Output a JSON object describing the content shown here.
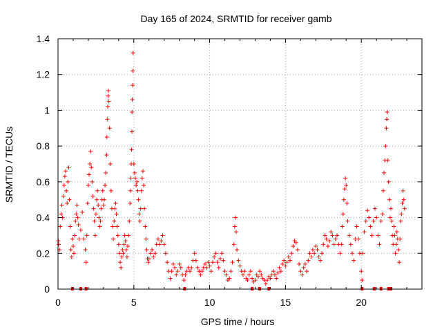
{
  "chart_data": {
    "type": "scatter",
    "title": "Day 165 of 2024, SRMTID for receiver gamb",
    "xlabel": "GPS time / hours",
    "ylabel": "SRMTID / TECUs",
    "xlim": [
      0,
      24
    ],
    "ylim": [
      0,
      1.4
    ],
    "xticks": [
      0,
      5,
      10,
      15,
      20
    ],
    "xtick_labels": [
      "0",
      "5",
      "10",
      "15",
      "20"
    ],
    "yticks": [
      0,
      0.2,
      0.4,
      0.6,
      0.8,
      1.0,
      1.2,
      1.4
    ],
    "ytick_labels": [
      "0",
      "0.2",
      "0.4",
      "0.6",
      "0.8",
      "1",
      "1.2",
      "1.4"
    ],
    "grid": true,
    "marker": "+",
    "marker_color": "#ff0000",
    "series": [
      {
        "name": "SRMTID",
        "points": [
          [
            0.02,
            0.27
          ],
          [
            0.05,
            0.25
          ],
          [
            0.1,
            0.22
          ],
          [
            0.15,
            0.35
          ],
          [
            0.2,
            0.42
          ],
          [
            0.25,
            0.47
          ],
          [
            0.3,
            0.4
          ],
          [
            0.35,
            0.52
          ],
          [
            0.4,
            0.58
          ],
          [
            0.45,
            0.63
          ],
          [
            0.5,
            0.66
          ],
          [
            0.55,
            0.55
          ],
          [
            0.6,
            0.48
          ],
          [
            0.65,
            0.6
          ],
          [
            0.7,
            0.68
          ],
          [
            0.75,
            0.5
          ],
          [
            0.8,
            0.35
          ],
          [
            0.85,
            0.22
          ],
          [
            0.9,
            0.18
          ],
          [
            0.95,
            0.28
          ],
          [
            1.0,
            0.24
          ],
          [
            1.05,
            0.2
          ],
          [
            1.1,
            0.3
          ],
          [
            1.15,
            0.38
          ],
          [
            1.2,
            0.42
          ],
          [
            1.25,
            0.47
          ],
          [
            1.3,
            0.4
          ],
          [
            1.35,
            0.36
          ],
          [
            1.4,
            0.28
          ],
          [
            1.5,
            0.33
          ],
          [
            1.6,
            0.43
          ],
          [
            1.7,
            0.28
          ],
          [
            1.8,
            0.22
          ],
          [
            1.85,
            0.15
          ],
          [
            1.9,
            0.3
          ],
          [
            1.95,
            0.48
          ],
          [
            2.0,
            0.58
          ],
          [
            2.05,
            0.64
          ],
          [
            2.1,
            0.7
          ],
          [
            2.15,
            0.77
          ],
          [
            2.2,
            0.68
          ],
          [
            2.25,
            0.6
          ],
          [
            2.3,
            0.52
          ],
          [
            2.35,
            0.45
          ],
          [
            2.4,
            0.38
          ],
          [
            2.45,
            0.3
          ],
          [
            2.5,
            0.42
          ],
          [
            2.55,
            0.5
          ],
          [
            2.6,
            0.55
          ],
          [
            2.65,
            0.47
          ],
          [
            2.7,
            0.4
          ],
          [
            2.75,
            0.35
          ],
          [
            2.8,
            0.38
          ],
          [
            2.85,
            0.45
          ],
          [
            2.9,
            0.5
          ],
          [
            2.95,
            0.55
          ],
          [
            3.0,
            0.47
          ],
          [
            3.05,
            0.5
          ],
          [
            3.1,
            0.58
          ],
          [
            3.15,
            0.65
          ],
          [
            3.2,
            0.75
          ],
          [
            3.22,
            0.85
          ],
          [
            3.25,
            0.95
          ],
          [
            3.28,
            1.02
          ],
          [
            3.3,
            1.08
          ],
          [
            3.32,
            1.11
          ],
          [
            3.35,
            1.05
          ],
          [
            3.4,
            0.9
          ],
          [
            3.45,
            0.7
          ],
          [
            3.5,
            0.55
          ],
          [
            3.55,
            0.45
          ],
          [
            3.6,
            0.35
          ],
          [
            3.65,
            0.28
          ],
          [
            3.7,
            0.38
          ],
          [
            3.75,
            0.45
          ],
          [
            3.8,
            0.48
          ],
          [
            3.85,
            0.42
          ],
          [
            3.9,
            0.35
          ],
          [
            3.95,
            0.3
          ],
          [
            4.0,
            0.25
          ],
          [
            4.05,
            0.2
          ],
          [
            4.1,
            0.15
          ],
          [
            4.15,
            0.12
          ],
          [
            4.2,
            0.18
          ],
          [
            4.25,
            0.22
          ],
          [
            4.3,
            0.2
          ],
          [
            4.35,
            0.25
          ],
          [
            4.4,
            0.3
          ],
          [
            4.45,
            0.27
          ],
          [
            4.5,
            0.22
          ],
          [
            4.55,
            0.18
          ],
          [
            4.6,
            0.24
          ],
          [
            4.65,
            0.3
          ],
          [
            4.7,
            0.38
          ],
          [
            4.75,
            0.48
          ],
          [
            4.78,
            0.55
          ],
          [
            4.8,
            0.62
          ],
          [
            4.83,
            0.7
          ],
          [
            4.85,
            0.78
          ],
          [
            4.87,
            0.88
          ],
          [
            4.88,
            0.99
          ],
          [
            4.9,
            1.06
          ],
          [
            4.92,
            1.14
          ],
          [
            4.93,
            1.22
          ],
          [
            4.95,
            1.32
          ],
          [
            5.0,
            0.7
          ],
          [
            5.05,
            0.65
          ],
          [
            5.1,
            0.62
          ],
          [
            5.15,
            0.58
          ],
          [
            5.2,
            0.6
          ],
          [
            5.25,
            0.55
          ],
          [
            5.3,
            0.5
          ],
          [
            5.35,
            0.42
          ],
          [
            5.4,
            0.38
          ],
          [
            5.45,
            0.45
          ],
          [
            5.5,
            0.55
          ],
          [
            5.55,
            0.62
          ],
          [
            5.6,
            0.66
          ],
          [
            5.65,
            0.58
          ],
          [
            5.7,
            0.45
          ],
          [
            5.75,
            0.35
          ],
          [
            5.8,
            0.28
          ],
          [
            5.85,
            0.22
          ],
          [
            5.9,
            0.17
          ],
          [
            5.95,
            0.15
          ],
          [
            6.0,
            0.17
          ],
          [
            6.1,
            0.2
          ],
          [
            6.2,
            0.22
          ],
          [
            6.3,
            0.18
          ],
          [
            6.4,
            0.2
          ],
          [
            6.5,
            0.25
          ],
          [
            6.6,
            0.28
          ],
          [
            6.7,
            0.25
          ],
          [
            6.8,
            0.27
          ],
          [
            6.9,
            0.3
          ],
          [
            7.0,
            0.25
          ],
          [
            7.1,
            0.2
          ],
          [
            7.2,
            0.15
          ],
          [
            7.3,
            0.1
          ],
          [
            7.4,
            0.06
          ],
          [
            7.5,
            0.1
          ],
          [
            7.6,
            0.14
          ],
          [
            7.7,
            0.12
          ],
          [
            7.8,
            0.08
          ],
          [
            7.9,
            0.1
          ],
          [
            8.0,
            0.14
          ],
          [
            8.1,
            0.12
          ],
          [
            8.2,
            0.08
          ],
          [
            8.3,
            0.05
          ],
          [
            8.4,
            0.08
          ],
          [
            8.5,
            0.1
          ],
          [
            8.6,
            0.12
          ],
          [
            8.7,
            0.1
          ],
          [
            8.8,
            0.12
          ],
          [
            8.9,
            0.16
          ],
          [
            9.0,
            0.2
          ],
          [
            9.1,
            0.16
          ],
          [
            9.2,
            0.12
          ],
          [
            9.3,
            0.1
          ],
          [
            9.4,
            0.08
          ],
          [
            9.5,
            0.1
          ],
          [
            9.6,
            0.12
          ],
          [
            9.7,
            0.14
          ],
          [
            9.8,
            0.12
          ],
          [
            9.9,
            0.15
          ],
          [
            10.0,
            0.13
          ],
          [
            10.1,
            0.1
          ],
          [
            10.2,
            0.15
          ],
          [
            10.3,
            0.18
          ],
          [
            10.4,
            0.2
          ],
          [
            10.5,
            0.15
          ],
          [
            10.6,
            0.12
          ],
          [
            10.7,
            0.17
          ],
          [
            10.8,
            0.2
          ],
          [
            10.9,
            0.16
          ],
          [
            11.0,
            0.1
          ],
          [
            11.1,
            0.08
          ],
          [
            11.2,
            0.05
          ],
          [
            11.3,
            0.06
          ],
          [
            11.4,
            0.1
          ],
          [
            11.5,
            0.15
          ],
          [
            11.6,
            0.25
          ],
          [
            11.65,
            0.35
          ],
          [
            11.7,
            0.4
          ],
          [
            11.75,
            0.32
          ],
          [
            11.8,
            0.22
          ],
          [
            11.9,
            0.16
          ],
          [
            12.0,
            0.13
          ],
          [
            12.1,
            0.1
          ],
          [
            12.2,
            0.08
          ],
          [
            12.3,
            0.1
          ],
          [
            12.4,
            0.06
          ],
          [
            12.5,
            0.05
          ],
          [
            12.6,
            0.08
          ],
          [
            12.7,
            0.1
          ],
          [
            12.8,
            0.06
          ],
          [
            12.9,
            0.04
          ],
          [
            13.0,
            0.05
          ],
          [
            13.1,
            0.08
          ],
          [
            13.2,
            0.07
          ],
          [
            13.3,
            0.1
          ],
          [
            13.4,
            0.08
          ],
          [
            13.5,
            0.06
          ],
          [
            13.6,
            0.05
          ],
          [
            13.7,
            0.03
          ],
          [
            13.8,
            0.05
          ],
          [
            13.9,
            0.07
          ],
          [
            14.0,
            0.06
          ],
          [
            14.1,
            0.08
          ],
          [
            14.2,
            0.1
          ],
          [
            14.3,
            0.08
          ],
          [
            14.4,
            0.06
          ],
          [
            14.5,
            0.09
          ],
          [
            14.6,
            0.12
          ],
          [
            14.7,
            0.1
          ],
          [
            14.8,
            0.14
          ],
          [
            14.9,
            0.16
          ],
          [
            15.0,
            0.13
          ],
          [
            15.1,
            0.15
          ],
          [
            15.2,
            0.18
          ],
          [
            15.3,
            0.16
          ],
          [
            15.4,
            0.2
          ],
          [
            15.5,
            0.24
          ],
          [
            15.6,
            0.27
          ],
          [
            15.7,
            0.26
          ],
          [
            15.8,
            0.22
          ],
          [
            15.9,
            0.14
          ],
          [
            16.0,
            0.1
          ],
          [
            16.1,
            0.08
          ],
          [
            16.2,
            0.12
          ],
          [
            16.3,
            0.14
          ],
          [
            16.4,
            0.1
          ],
          [
            16.5,
            0.16
          ],
          [
            16.6,
            0.2
          ],
          [
            16.7,
            0.18
          ],
          [
            16.8,
            0.22
          ],
          [
            16.9,
            0.2
          ],
          [
            17.0,
            0.24
          ],
          [
            17.1,
            0.22
          ],
          [
            17.2,
            0.18
          ],
          [
            17.3,
            0.16
          ],
          [
            17.4,
            0.2
          ],
          [
            17.5,
            0.25
          ],
          [
            17.6,
            0.3
          ],
          [
            17.7,
            0.28
          ],
          [
            17.8,
            0.24
          ],
          [
            17.9,
            0.27
          ],
          [
            18.0,
            0.32
          ],
          [
            18.1,
            0.3
          ],
          [
            18.2,
            0.25
          ],
          [
            18.3,
            0.28
          ],
          [
            18.4,
            0.3
          ],
          [
            18.5,
            0.25
          ],
          [
            18.6,
            0.2
          ],
          [
            18.7,
            0.25
          ],
          [
            18.75,
            0.35
          ],
          [
            18.8,
            0.42
          ],
          [
            18.85,
            0.5
          ],
          [
            18.9,
            0.56
          ],
          [
            18.95,
            0.62
          ],
          [
            19.0,
            0.58
          ],
          [
            19.05,
            0.48
          ],
          [
            19.1,
            0.38
          ],
          [
            19.2,
            0.3
          ],
          [
            19.3,
            0.25
          ],
          [
            19.4,
            0.2
          ],
          [
            19.5,
            0.16
          ],
          [
            19.6,
            0.28
          ],
          [
            19.7,
            0.35
          ],
          [
            19.8,
            0.28
          ],
          [
            19.9,
            0.2
          ],
          [
            20.0,
            0.1
          ],
          [
            20.05,
            0.05
          ],
          [
            20.1,
            0.2
          ],
          [
            20.2,
            0.32
          ],
          [
            20.3,
            0.38
          ],
          [
            20.4,
            0.44
          ],
          [
            20.5,
            0.4
          ],
          [
            20.6,
            0.35
          ],
          [
            20.7,
            0.3
          ],
          [
            20.8,
            0.38
          ],
          [
            20.9,
            0.45
          ],
          [
            21.0,
            0.4
          ],
          [
            21.1,
            0.3
          ],
          [
            21.2,
            0.25
          ],
          [
            21.3,
            0.38
          ],
          [
            21.4,
            0.42
          ],
          [
            21.45,
            0.55
          ],
          [
            21.5,
            0.65
          ],
          [
            21.55,
            0.72
          ],
          [
            21.6,
            0.8
          ],
          [
            21.65,
            0.9
          ],
          [
            21.68,
            0.95
          ],
          [
            21.7,
            0.99
          ],
          [
            21.75,
            0.72
          ],
          [
            21.8,
            0.6
          ],
          [
            21.85,
            0.5
          ],
          [
            21.9,
            0.4
          ],
          [
            21.95,
            0.45
          ],
          [
            22.0,
            0.38
          ],
          [
            22.05,
            0.3
          ],
          [
            22.1,
            0.25
          ],
          [
            22.15,
            0.35
          ],
          [
            22.2,
            0.3
          ],
          [
            22.25,
            0.2
          ],
          [
            22.3,
            0.25
          ],
          [
            22.35,
            0.32
          ],
          [
            22.4,
            0.28
          ],
          [
            22.45,
            0.22
          ],
          [
            22.5,
            0.15
          ],
          [
            22.55,
            0.28
          ],
          [
            22.6,
            0.38
          ],
          [
            22.65,
            0.42
          ],
          [
            22.7,
            0.48
          ],
          [
            22.75,
            0.55
          ],
          [
            22.8,
            0.5
          ],
          [
            22.85,
            0.45
          ]
        ]
      }
    ],
    "zero_markers_x": [
      0.95,
      1.5,
      1.85,
      8.35,
      12.8,
      13.3,
      13.9,
      20.05,
      20.85,
      21.3,
      21.8,
      21.95
    ]
  }
}
